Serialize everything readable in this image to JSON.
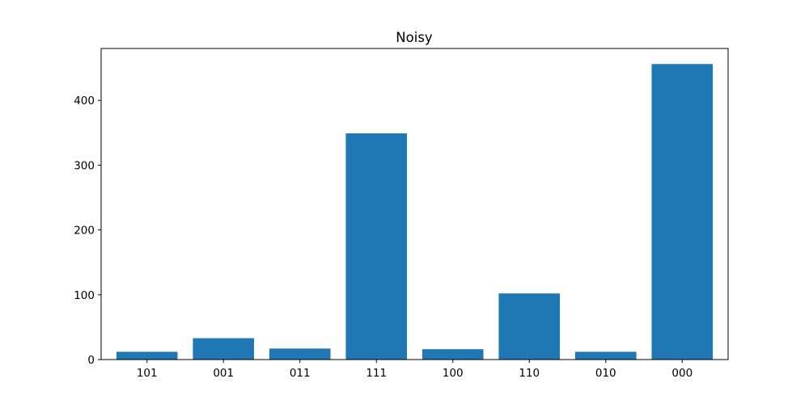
{
  "chart_data": {
    "type": "bar",
    "title": "Noisy",
    "xlabel": "",
    "ylabel": "",
    "categories": [
      "101",
      "001",
      "011",
      "111",
      "100",
      "110",
      "010",
      "000"
    ],
    "values": [
      12,
      33,
      17,
      349,
      16,
      102,
      12,
      456
    ],
    "ylim": [
      0,
      480
    ],
    "yticks": [
      0,
      100,
      200,
      300,
      400
    ],
    "bar_color": "#1f77b4",
    "grid": false,
    "legend": "none"
  }
}
